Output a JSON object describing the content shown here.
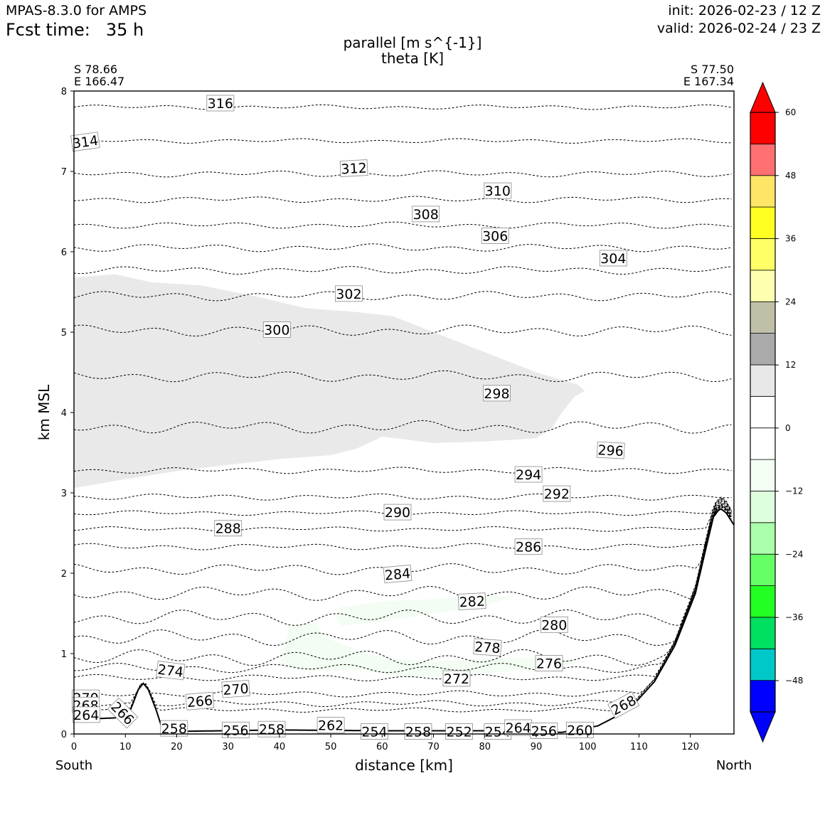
{
  "header": {
    "model": "MPAS-8.3.0 for AMPS",
    "fcst_prefix": "Fcst time:",
    "fcst_value": "35 h",
    "init": "init: 2026-02-23 / 12 Z",
    "valid": "valid: 2026-02-24 / 23 Z"
  },
  "chart_data": {
    "type": "contour",
    "title": "parallel [m s^{-1}]",
    "subtitle": "theta [K]",
    "xlabel": "distance [km]",
    "ylabel": "km MSL",
    "xlim": [
      0,
      128.5
    ],
    "ylim": [
      0,
      8
    ],
    "x_ticks": [
      0,
      10,
      20,
      30,
      40,
      50,
      60,
      70,
      80,
      90,
      100,
      110,
      120
    ],
    "y_ticks": [
      0,
      1,
      2,
      3,
      4,
      5,
      6,
      7,
      8
    ],
    "endpoints": {
      "left": {
        "lat": "S 78.66",
        "lon": "E 166.47",
        "side": "South"
      },
      "right": {
        "lat": "S 77.50",
        "lon": "E 167.34",
        "side": "North"
      }
    },
    "colorbar": {
      "ticks": [
        "60",
        "48",
        "36",
        "24",
        "12",
        "0",
        "−12",
        "−24",
        "−36",
        "−48"
      ],
      "levels": [
        -60,
        -54,
        -48,
        -42,
        -36,
        -30,
        -24,
        -18,
        -12,
        -6,
        0,
        6,
        12,
        18,
        24,
        30,
        36,
        42,
        48,
        54,
        60
      ],
      "colors": [
        "#0000ff",
        "#00c8c8",
        "#00e060",
        "#22ff22",
        "#66ff66",
        "#aaffaa",
        "#ddffdd",
        "#f4fff4",
        "#ffffff",
        "#ffffff",
        "#e8e8e8",
        "#aaaaaa",
        "#c0c0a8",
        "#ffffb0",
        "#ffff66",
        "#ffff22",
        "#ffe566",
        "#ff7070",
        "#ff0000",
        "#ff0000"
      ],
      "extend": "both"
    },
    "terrain": [
      [
        0,
        0.18
      ],
      [
        8,
        0.2
      ],
      [
        11,
        0.3
      ],
      [
        12.5,
        0.55
      ],
      [
        13.5,
        0.63
      ],
      [
        14.5,
        0.55
      ],
      [
        16,
        0.3
      ],
      [
        17,
        0.1
      ],
      [
        18,
        0.03
      ],
      [
        40,
        0.05
      ],
      [
        60,
        0.04
      ],
      [
        80,
        0.04
      ],
      [
        95,
        0.02
      ],
      [
        102,
        0.1
      ],
      [
        108,
        0.3
      ],
      [
        113,
        0.65
      ],
      [
        117,
        1.1
      ],
      [
        121,
        1.75
      ],
      [
        123,
        2.3
      ],
      [
        124.5,
        2.7
      ],
      [
        125.8,
        2.81
      ],
      [
        127,
        2.75
      ],
      [
        128.5,
        2.6
      ]
    ],
    "shaded_regions": [
      {
        "name": "parallel-positive-6-12",
        "level": "6 to 12",
        "polygon": [
          [
            0,
            5.68
          ],
          [
            8,
            5.72
          ],
          [
            15,
            5.62
          ],
          [
            25,
            5.58
          ],
          [
            35,
            5.45
          ],
          [
            45,
            5.3
          ],
          [
            55,
            5.25
          ],
          [
            62,
            5.2
          ],
          [
            70,
            5.0
          ],
          [
            80,
            4.75
          ],
          [
            90,
            4.5
          ],
          [
            98,
            4.35
          ],
          [
            99.5,
            4.27
          ],
          [
            97.5,
            4.2
          ],
          [
            95,
            4.0
          ],
          [
            93,
            3.8
          ],
          [
            90,
            3.68
          ],
          [
            80,
            3.64
          ],
          [
            70,
            3.62
          ],
          [
            60,
            3.7
          ],
          [
            55,
            3.55
          ],
          [
            50,
            3.47
          ],
          [
            40,
            3.42
          ],
          [
            30,
            3.35
          ],
          [
            20,
            3.27
          ],
          [
            10,
            3.17
          ],
          [
            0,
            3.06
          ]
        ]
      },
      {
        "name": "parallel-negative-6-0-upper",
        "level": "-6 to 0",
        "polygon": [
          [
            52,
            1.58
          ],
          [
            60,
            1.65
          ],
          [
            70,
            1.68
          ],
          [
            80,
            1.72
          ],
          [
            85,
            1.7
          ],
          [
            80,
            1.6
          ],
          [
            70,
            1.5
          ],
          [
            60,
            1.4
          ],
          [
            52,
            1.35
          ],
          [
            51,
            1.45
          ]
        ]
      },
      {
        "name": "parallel-negative-6-0-lower",
        "level": "-6 to 0",
        "polygon": [
          [
            42,
            1.35
          ],
          [
            47,
            1.38
          ],
          [
            49,
            1.2
          ],
          [
            55,
            1.05
          ],
          [
            60,
            0.95
          ],
          [
            70,
            0.9
          ],
          [
            85,
            0.95
          ],
          [
            100,
            0.9
          ],
          [
            95,
            0.85
          ],
          [
            80,
            0.75
          ],
          [
            65,
            0.7
          ],
          [
            55,
            0.8
          ],
          [
            45,
            0.78
          ],
          [
            40,
            0.85
          ],
          [
            41,
            1.1
          ]
        ]
      }
    ],
    "theta_contours": [
      {
        "value": 316,
        "y": 7.8,
        "amp": 0.03
      },
      {
        "value": 314,
        "y": 7.38,
        "amp": 0.03
      },
      {
        "value": 312,
        "y": 6.97,
        "amp": 0.04
      },
      {
        "value": 310,
        "y": 6.65,
        "amp": 0.04
      },
      {
        "value": 308,
        "y": 6.33,
        "amp": 0.04
      },
      {
        "value": 306,
        "y": 6.05,
        "amp": 0.05
      },
      {
        "value": 304,
        "y": 5.77,
        "amp": 0.05
      },
      {
        "value": 302,
        "y": 5.45,
        "amp": 0.06
      },
      {
        "value": 300,
        "y": 5.02,
        "amp": 0.07
      },
      {
        "value": 298,
        "y": 4.45,
        "amp": 0.07
      },
      {
        "value": 296,
        "y": 3.82,
        "amp": 0.08
      },
      {
        "value": 294,
        "y": 3.28,
        "amp": 0.04
      },
      {
        "value": 292,
        "y": 2.95,
        "amp": 0.04
      },
      {
        "value": 290,
        "y": 2.75,
        "amp": 0.03
      },
      {
        "value": 288,
        "y": 2.55,
        "amp": 0.03
      },
      {
        "value": 286,
        "y": 2.33,
        "amp": 0.04
      },
      {
        "value": 284,
        "y": 2.05,
        "amp": 0.07
      },
      {
        "value": 282,
        "y": 1.75,
        "amp": 0.09
      },
      {
        "value": 280,
        "y": 1.45,
        "amp": 0.1
      },
      {
        "value": 278,
        "y": 1.2,
        "amp": 0.1
      },
      {
        "value": 276,
        "y": 0.95,
        "amp": 0.1
      },
      {
        "value": 274,
        "y": 0.82,
        "amp": 0.06
      },
      {
        "value": 272,
        "y": 0.7,
        "amp": 0.04
      },
      {
        "value": 270,
        "y": 0.5,
        "amp": 0.04
      },
      {
        "value": 268,
        "y": 0.38,
        "amp": 0.04
      },
      {
        "value": 266,
        "y": 0.3,
        "amp": 0.03
      }
    ],
    "contour_labels": [
      {
        "text": "316",
        "x": 28.5,
        "y": 7.85,
        "rot": 0
      },
      {
        "text": "314",
        "x": 2.2,
        "y": 7.37,
        "rot": -8
      },
      {
        "text": "312",
        "x": 54.5,
        "y": 7.04,
        "rot": -3
      },
      {
        "text": "310",
        "x": 82.5,
        "y": 6.76,
        "rot": 0
      },
      {
        "text": "308",
        "x": 68.5,
        "y": 6.47,
        "rot": 0
      },
      {
        "text": "306",
        "x": 82,
        "y": 6.2,
        "rot": 0
      },
      {
        "text": "304",
        "x": 105,
        "y": 5.92,
        "rot": 0
      },
      {
        "text": "302",
        "x": 53.5,
        "y": 5.48,
        "rot": 0
      },
      {
        "text": "300",
        "x": 39.5,
        "y": 5.03,
        "rot": 0
      },
      {
        "text": "298",
        "x": 82.3,
        "y": 4.24,
        "rot": 0
      },
      {
        "text": "296",
        "x": 104.5,
        "y": 3.53,
        "rot": 3
      },
      {
        "text": "294",
        "x": 88.5,
        "y": 3.23,
        "rot": 0
      },
      {
        "text": "292",
        "x": 94,
        "y": 2.99,
        "rot": 0
      },
      {
        "text": "290",
        "x": 63,
        "y": 2.76,
        "rot": 0
      },
      {
        "text": "288",
        "x": 30,
        "y": 2.56,
        "rot": 0
      },
      {
        "text": "286",
        "x": 88.5,
        "y": 2.33,
        "rot": 0
      },
      {
        "text": "284",
        "x": 63,
        "y": 1.99,
        "rot": -5
      },
      {
        "text": "282",
        "x": 77.5,
        "y": 1.65,
        "rot": -3
      },
      {
        "text": "280",
        "x": 93.5,
        "y": 1.36,
        "rot": 0
      },
      {
        "text": "278",
        "x": 80.5,
        "y": 1.08,
        "rot": 4
      },
      {
        "text": "276",
        "x": 92.5,
        "y": 0.88,
        "rot": 0
      },
      {
        "text": "274",
        "x": 18.8,
        "y": 0.79,
        "rot": 7
      },
      {
        "text": "272",
        "x": 74.5,
        "y": 0.69,
        "rot": 0
      },
      {
        "text": "270",
        "x": 31.5,
        "y": 0.56,
        "rot": -4
      },
      {
        "text": "268",
        "x": 107,
        "y": 0.36,
        "rot": -28
      },
      {
        "text": "266",
        "x": 24.5,
        "y": 0.41,
        "rot": -5
      },
      {
        "text": "270",
        "x": 2.3,
        "y": 0.45,
        "rot": 0
      },
      {
        "text": "268",
        "x": 2.3,
        "y": 0.36,
        "rot": 0
      },
      {
        "text": "264",
        "x": 2.4,
        "y": 0.24,
        "rot": 0
      },
      {
        "text": "266",
        "x": 9.5,
        "y": 0.26,
        "rot": 45
      },
      {
        "text": "258",
        "x": 19.5,
        "y": 0.07,
        "rot": 0
      },
      {
        "text": "256",
        "x": 31.5,
        "y": 0.05,
        "rot": 0
      },
      {
        "text": "258",
        "x": 38.5,
        "y": 0.06,
        "rot": 0
      },
      {
        "text": "262",
        "x": 50,
        "y": 0.11,
        "rot": 0
      },
      {
        "text": "254",
        "x": 58.5,
        "y": 0.03,
        "rot": 0
      },
      {
        "text": "258",
        "x": 67,
        "y": 0.03,
        "rot": 0
      },
      {
        "text": "252",
        "x": 75,
        "y": 0.03,
        "rot": 0
      },
      {
        "text": "254",
        "x": 82.5,
        "y": 0.03,
        "rot": 0
      },
      {
        "text": "264",
        "x": 86.5,
        "y": 0.08,
        "rot": 0
      },
      {
        "text": "256",
        "x": 91.5,
        "y": 0.04,
        "rot": 0
      },
      {
        "text": "260",
        "x": 98.5,
        "y": 0.05,
        "rot": 0
      }
    ]
  }
}
